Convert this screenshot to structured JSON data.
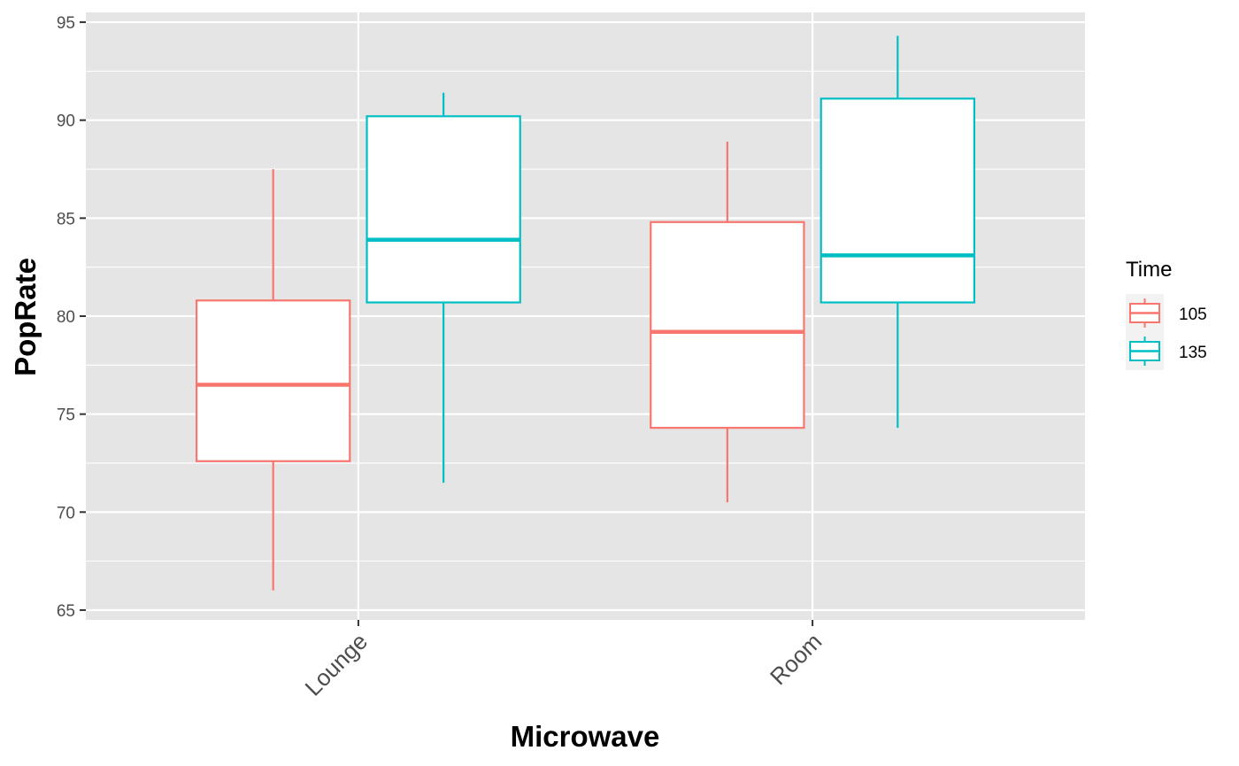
{
  "chart_data": {
    "type": "boxplot",
    "xlabel": "Microwave",
    "ylabel": "PopRate",
    "categories": [
      "Lounge",
      "Room"
    ],
    "ylim": [
      64.5,
      95.5
    ],
    "yticks": [
      65,
      70,
      75,
      80,
      85,
      90,
      95
    ],
    "grid": true,
    "legend": {
      "title": "Time",
      "position": "right",
      "entries": [
        "105",
        "135"
      ]
    },
    "series": [
      {
        "name": "105",
        "color": "#F8766D",
        "boxes": [
          {
            "category": "Lounge",
            "min": 66.0,
            "q1": 72.6,
            "median": 76.5,
            "q3": 80.8,
            "max": 87.5
          },
          {
            "category": "Room",
            "min": 70.5,
            "q1": 74.3,
            "median": 79.2,
            "q3": 84.8,
            "max": 88.9
          }
        ]
      },
      {
        "name": "135",
        "color": "#00BFC4",
        "boxes": [
          {
            "category": "Lounge",
            "min": 71.5,
            "q1": 80.7,
            "median": 83.9,
            "q3": 90.2,
            "max": 91.4
          },
          {
            "category": "Room",
            "min": 74.3,
            "q1": 80.7,
            "median": 83.1,
            "q3": 91.1,
            "max": 94.3
          }
        ]
      }
    ]
  }
}
